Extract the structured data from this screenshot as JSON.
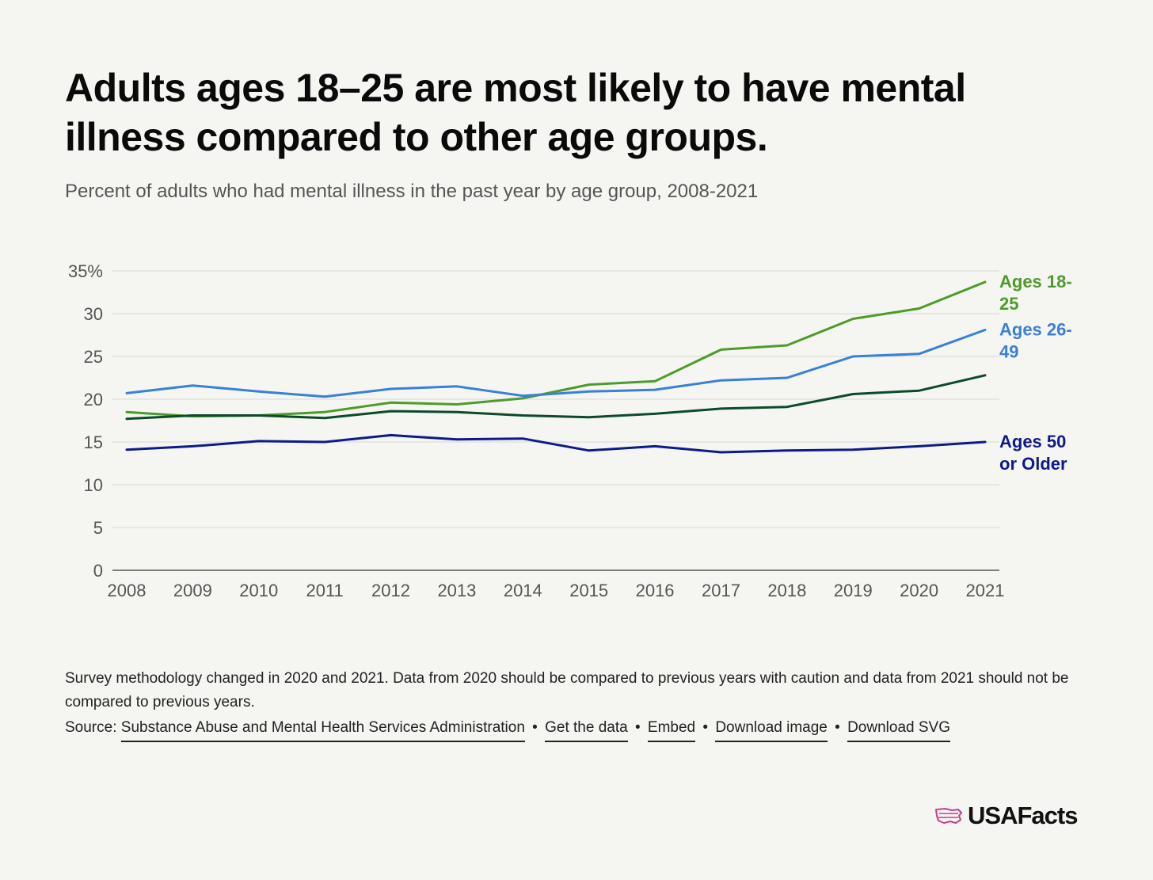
{
  "title": "Adults ages 18–25 are most likely to have mental illness compared to other age groups.",
  "subtitle": "Percent of adults who had mental illness in the past year by age group, 2008-2021",
  "chart_data": {
    "type": "line",
    "x": [
      2008,
      2009,
      2010,
      2011,
      2012,
      2013,
      2014,
      2015,
      2016,
      2017,
      2018,
      2019,
      2020,
      2021
    ],
    "series": [
      {
        "name": "Ages 18-25",
        "label_lines": [
          "Ages 18-",
          "25"
        ],
        "color": "#4e9a2a",
        "values": [
          18.5,
          18.0,
          18.1,
          18.5,
          19.6,
          19.4,
          20.1,
          21.7,
          22.1,
          25.8,
          26.3,
          29.4,
          30.6,
          33.7
        ]
      },
      {
        "name": "Ages 26-49",
        "label_lines": [
          "Ages 26-",
          "49"
        ],
        "color": "#3a7fd8",
        "values": [
          20.7,
          21.6,
          20.9,
          20.3,
          21.2,
          21.5,
          20.4,
          20.9,
          21.1,
          22.2,
          22.5,
          25.0,
          25.3,
          28.1
        ]
      },
      {
        "name": "",
        "label_lines": [],
        "color": "#0d4a2a",
        "values": [
          17.7,
          18.1,
          18.1,
          17.8,
          18.6,
          18.5,
          18.1,
          17.9,
          18.3,
          18.9,
          19.1,
          20.6,
          21.0,
          22.8
        ]
      },
      {
        "name": "Ages 50 or Older",
        "label_lines": [
          "Ages 50",
          "or Older"
        ],
        "color": "#0f1a8a",
        "values": [
          14.1,
          14.5,
          15.1,
          15.0,
          15.8,
          15.3,
          15.4,
          14.0,
          14.5,
          13.8,
          14.0,
          14.1,
          14.5,
          15.0
        ]
      }
    ],
    "yticks": [
      "0",
      "5",
      "10",
      "15",
      "20",
      "25",
      "30",
      "35%"
    ],
    "ylim": [
      0,
      35
    ],
    "grid": true
  },
  "footnote": "Survey methodology changed in 2020 and 2021. Data from 2020 should be compared to previous years with caution and data from 2021 should not be compared to previous years.",
  "source": {
    "label": "Source:",
    "links": [
      "Substance Abuse and Mental Health Services Administration",
      "Get the data",
      "Embed",
      "Download image",
      "Download SVG"
    ],
    "separator": "•"
  },
  "logo": {
    "text": "USAFacts",
    "color": "#c2408c"
  }
}
